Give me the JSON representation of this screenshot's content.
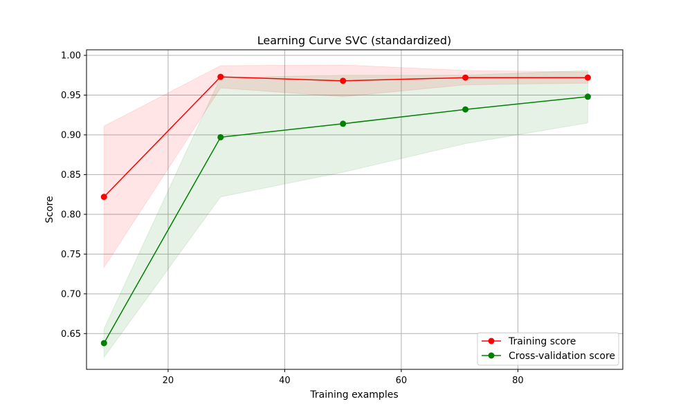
{
  "chart_data": {
    "type": "line",
    "title": "Learning Curve SVC (standardized)",
    "xlabel": "Training examples",
    "ylabel": "Score",
    "xlim": [
      6,
      98
    ],
    "ylim": [
      0.605,
      1.007
    ],
    "x_ticks": [
      20,
      40,
      60,
      80
    ],
    "y_ticks": [
      0.65,
      0.7,
      0.75,
      0.8,
      0.85,
      0.9,
      0.95,
      1.0
    ],
    "x_tick_labels": [
      "20",
      "40",
      "60",
      "80"
    ],
    "y_tick_labels": [
      "0.65",
      "0.70",
      "0.75",
      "0.80",
      "0.85",
      "0.90",
      "0.95",
      "1.00"
    ],
    "grid": true,
    "legend_position": "lower-right",
    "x": [
      9,
      29,
      50,
      71,
      92
    ],
    "series": [
      {
        "name": "Training score",
        "color": "#ff0000",
        "values": [
          0.822,
          0.973,
          0.968,
          0.972,
          0.972
        ],
        "band_lower": [
          0.733,
          0.959,
          0.948,
          0.963,
          0.965
        ],
        "band_upper": [
          0.911,
          0.987,
          0.988,
          0.981,
          0.979
        ]
      },
      {
        "name": "Cross-validation score",
        "color": "#008000",
        "values": [
          0.638,
          0.897,
          0.914,
          0.932,
          0.948
        ],
        "band_lower": [
          0.62,
          0.822,
          0.853,
          0.889,
          0.915
        ],
        "band_upper": [
          0.656,
          0.972,
          0.975,
          0.975,
          0.981
        ]
      }
    ]
  }
}
